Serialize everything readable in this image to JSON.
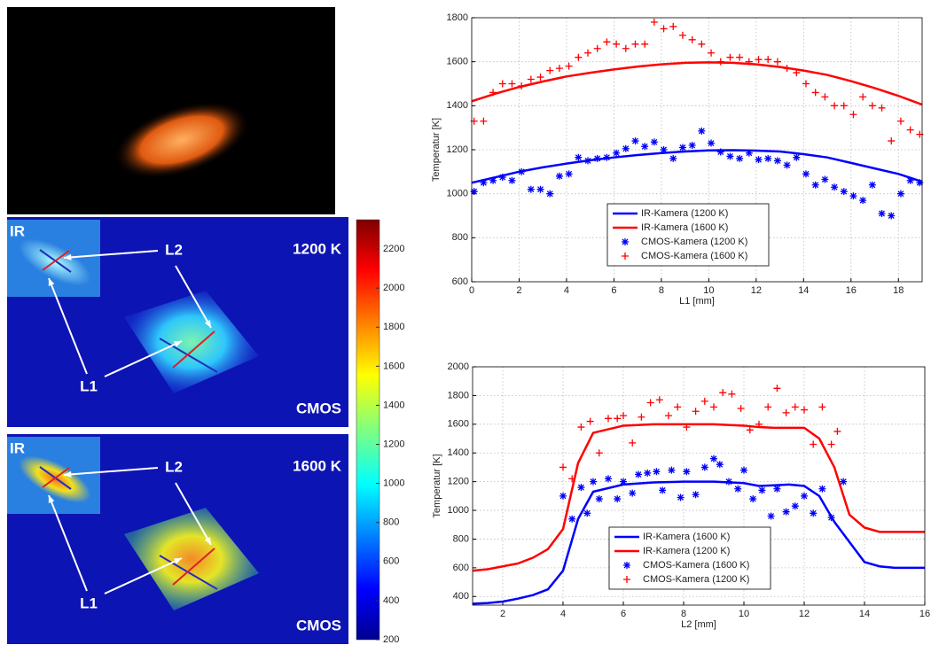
{
  "panels": [
    {
      "ir": "IR",
      "temp": "1200 K",
      "l1": "L1",
      "l2": "L2",
      "cmos": "CMOS"
    },
    {
      "ir": "IR",
      "temp": "1600 K",
      "l1": "L1",
      "l2": "L2",
      "cmos": "CMOS"
    }
  ],
  "colorbar": {
    "lim": [
      200,
      2350
    ],
    "ticks": [
      200,
      400,
      600,
      800,
      1000,
      1200,
      1400,
      1600,
      1800,
      2000,
      2200
    ]
  },
  "chart_data": [
    {
      "type": "line",
      "x_label": "L1 [mm]",
      "y_label": "Temperatur [K]",
      "xlim": [
        0,
        19
      ],
      "xticks": [
        0,
        2,
        4,
        6,
        8,
        10,
        12,
        14,
        16,
        18
      ],
      "ylim": [
        600,
        1800
      ],
      "yticks": [
        600,
        800,
        1000,
        1200,
        1400,
        1600,
        1800
      ],
      "grid": true,
      "legend": "lower center",
      "series": [
        {
          "name": "IR-Kamera (1200 K)",
          "color": "#0000ff",
          "marker": "line",
          "x": [
            0,
            1,
            2,
            3,
            4,
            5,
            6,
            7,
            8,
            9,
            10,
            11,
            12,
            13,
            14,
            15,
            16,
            17,
            18,
            19
          ],
          "values": [
            1050,
            1075,
            1100,
            1120,
            1137,
            1152,
            1165,
            1176,
            1185,
            1192,
            1197,
            1198,
            1196,
            1192,
            1180,
            1165,
            1140,
            1115,
            1090,
            1055
          ]
        },
        {
          "name": "IR-Kamera (1600 K)",
          "color": "#ff0000",
          "marker": "line",
          "x": [
            0,
            1,
            2,
            3,
            4,
            5,
            6,
            7,
            8,
            9,
            10,
            11,
            12,
            13,
            14,
            15,
            16,
            17,
            18,
            19
          ],
          "values": [
            1420,
            1455,
            1485,
            1510,
            1533,
            1550,
            1565,
            1578,
            1588,
            1595,
            1597,
            1595,
            1588,
            1576,
            1560,
            1540,
            1512,
            1480,
            1445,
            1405
          ]
        },
        {
          "name": "CMOS-Kamera (1200 K)",
          "color": "#0000ff",
          "marker": "star",
          "x": [
            0.1,
            0.5,
            0.9,
            1.3,
            1.7,
            2.1,
            2.5,
            2.9,
            3.3,
            3.7,
            4.1,
            4.5,
            4.9,
            5.3,
            5.7,
            6.1,
            6.5,
            6.9,
            7.3,
            7.7,
            8.1,
            8.5,
            8.9,
            9.3,
            9.7,
            10.1,
            10.5,
            10.9,
            11.3,
            11.7,
            12.1,
            12.5,
            12.9,
            13.3,
            13.7,
            14.1,
            14.5,
            14.9,
            15.3,
            15.7,
            16.1,
            16.5,
            16.9,
            17.3,
            17.7,
            18.1,
            18.5,
            18.9
          ],
          "values": [
            1010,
            1050,
            1060,
            1075,
            1060,
            1100,
            1020,
            1020,
            1000,
            1080,
            1090,
            1165,
            1150,
            1160,
            1165,
            1185,
            1205,
            1240,
            1215,
            1235,
            1200,
            1160,
            1210,
            1220,
            1285,
            1230,
            1190,
            1170,
            1160,
            1185,
            1155,
            1160,
            1150,
            1130,
            1165,
            1090,
            1040,
            1065,
            1030,
            1010,
            990,
            970,
            1040,
            910,
            900,
            1000,
            1060,
            1050
          ]
        },
        {
          "name": "CMOS-Kamera (1600 K)",
          "color": "#ff0000",
          "marker": "plus",
          "x": [
            0.1,
            0.5,
            0.9,
            1.3,
            1.7,
            2.1,
            2.5,
            2.9,
            3.3,
            3.7,
            4.1,
            4.5,
            4.9,
            5.3,
            5.7,
            6.1,
            6.5,
            6.9,
            7.3,
            7.7,
            8.1,
            8.5,
            8.9,
            9.3,
            9.7,
            10.1,
            10.5,
            10.9,
            11.3,
            11.7,
            12.1,
            12.5,
            12.9,
            13.3,
            13.7,
            14.1,
            14.5,
            14.9,
            15.3,
            15.7,
            16.1,
            16.5,
            16.9,
            17.3,
            17.7,
            18.1,
            18.5,
            18.9
          ],
          "values": [
            1330,
            1330,
            1460,
            1500,
            1500,
            1490,
            1520,
            1530,
            1560,
            1570,
            1580,
            1620,
            1640,
            1660,
            1690,
            1680,
            1660,
            1680,
            1680,
            1780,
            1750,
            1760,
            1720,
            1700,
            1680,
            1640,
            1600,
            1620,
            1620,
            1600,
            1610,
            1610,
            1600,
            1570,
            1550,
            1500,
            1460,
            1440,
            1400,
            1400,
            1360,
            1440,
            1400,
            1390,
            1240,
            1330,
            1290,
            1270
          ]
        }
      ]
    },
    {
      "type": "line",
      "x_label": "L2 [mm]",
      "y_label": "Temperatur [K]",
      "xlim": [
        1,
        16
      ],
      "xticks": [
        2,
        4,
        6,
        8,
        10,
        12,
        14,
        16
      ],
      "ylim": [
        340,
        2000
      ],
      "yticks": [
        400,
        600,
        800,
        1000,
        1200,
        1400,
        1600,
        1800,
        2000
      ],
      "grid": true,
      "legend": "lower center",
      "series": [
        {
          "name": "IR-Kamera (1600 K)",
          "color": "#0000ff",
          "marker": "line",
          "x": [
            1,
            1.5,
            2,
            2.5,
            3,
            3.5,
            4,
            4.5,
            5,
            6,
            7,
            8,
            9,
            10,
            10.5,
            11,
            11.5,
            12,
            12.5,
            13,
            13.5,
            14,
            14.5,
            15,
            15.5,
            16
          ],
          "values": [
            350,
            355,
            365,
            385,
            410,
            450,
            580,
            940,
            1130,
            1180,
            1195,
            1200,
            1200,
            1190,
            1170,
            1175,
            1180,
            1170,
            1100,
            920,
            780,
            640,
            610,
            600,
            600,
            600
          ]
        },
        {
          "name": "IR-Kamera (1200 K)",
          "color": "#ff0000",
          "marker": "line",
          "x": [
            1,
            1.5,
            2,
            2.5,
            3,
            3.5,
            4,
            4.5,
            5,
            6,
            7,
            8,
            9,
            10,
            10.5,
            11,
            11.5,
            12,
            12.5,
            13,
            13.5,
            14,
            14.5,
            15,
            15.5,
            16
          ],
          "values": [
            580,
            590,
            610,
            630,
            670,
            730,
            870,
            1330,
            1540,
            1590,
            1600,
            1600,
            1600,
            1590,
            1580,
            1575,
            1575,
            1575,
            1500,
            1300,
            970,
            880,
            850,
            850,
            850,
            850
          ]
        },
        {
          "name": "CMOS-Kamera (1600 K)",
          "color": "#0000ff",
          "marker": "star",
          "x": [
            4.0,
            4.3,
            4.6,
            4.8,
            5.0,
            5.2,
            5.5,
            5.8,
            6.0,
            6.3,
            6.5,
            6.8,
            7.1,
            7.3,
            7.6,
            7.9,
            8.1,
            8.4,
            8.7,
            9.0,
            9.2,
            9.5,
            9.8,
            10.0,
            10.3,
            10.6,
            10.9,
            11.1,
            11.4,
            11.7,
            12.0,
            12.3,
            12.6,
            12.9,
            13.3
          ],
          "values": [
            1100,
            940,
            1160,
            980,
            1200,
            1080,
            1220,
            1080,
            1200,
            1120,
            1250,
            1260,
            1270,
            1140,
            1280,
            1090,
            1270,
            1110,
            1300,
            1360,
            1320,
            1200,
            1150,
            1280,
            1080,
            1140,
            960,
            1150,
            990,
            1030,
            1100,
            980,
            1150,
            950,
            1200
          ]
        },
        {
          "name": "CMOS-Kamera (1200 K)",
          "color": "#ff0000",
          "marker": "plus",
          "x": [
            4.0,
            4.3,
            4.6,
            4.9,
            5.2,
            5.5,
            5.8,
            6.0,
            6.3,
            6.6,
            6.9,
            7.2,
            7.5,
            7.8,
            8.1,
            8.4,
            8.7,
            9.0,
            9.3,
            9.6,
            9.9,
            10.2,
            10.5,
            10.8,
            11.1,
            11.4,
            11.7,
            12.0,
            12.3,
            12.6,
            12.9,
            13.1
          ],
          "values": [
            1300,
            1220,
            1580,
            1620,
            1400,
            1640,
            1640,
            1660,
            1470,
            1650,
            1750,
            1770,
            1660,
            1720,
            1580,
            1690,
            1760,
            1720,
            1820,
            1810,
            1710,
            1560,
            1600,
            1720,
            1850,
            1680,
            1720,
            1700,
            1460,
            1720,
            1460,
            1550
          ]
        }
      ]
    }
  ]
}
